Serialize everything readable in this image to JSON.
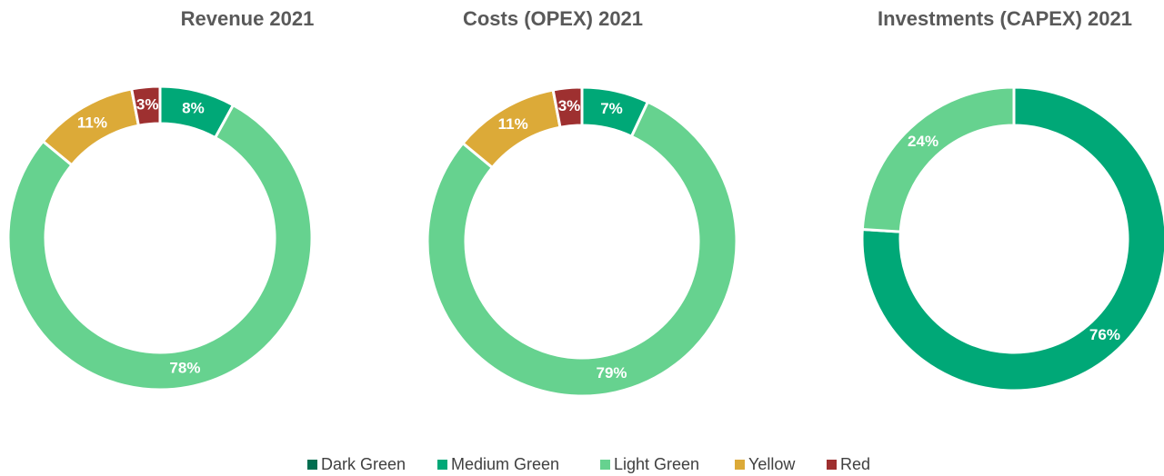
{
  "chart_data": [
    {
      "type": "donut",
      "title": "Revenue 2021",
      "categories": [
        "Dark Green",
        "Medium Green",
        "Light Green",
        "Yellow",
        "Red"
      ],
      "values": [
        0,
        8,
        78,
        11,
        3
      ],
      "value_labels": [
        null,
        "8%",
        "78%",
        "11%",
        "3%"
      ],
      "colors": [
        "#006e50",
        "#00a877",
        "#66d28f",
        "#dcaa38",
        "#9e3030"
      ]
    },
    {
      "type": "donut",
      "title": "Costs (OPEX) 2021",
      "categories": [
        "Dark Green",
        "Medium Green",
        "Light Green",
        "Yellow",
        "Red"
      ],
      "values": [
        0,
        7,
        79,
        11,
        3
      ],
      "value_labels": [
        null,
        "7%",
        "79%",
        "11%",
        "3%"
      ],
      "colors": [
        "#006e50",
        "#00a877",
        "#66d28f",
        "#dcaa38",
        "#9e3030"
      ]
    },
    {
      "type": "donut",
      "title": "Investments (CAPEX) 2021",
      "categories": [
        "Dark Green",
        "Medium Green",
        "Light Green",
        "Yellow",
        "Red"
      ],
      "values": [
        0,
        76,
        24,
        0,
        0
      ],
      "value_labels": [
        null,
        "76%",
        "24%",
        null,
        null
      ],
      "colors": [
        "#006e50",
        "#00a877",
        "#66d28f",
        "#dcaa38",
        "#9e3030"
      ]
    }
  ]
}
